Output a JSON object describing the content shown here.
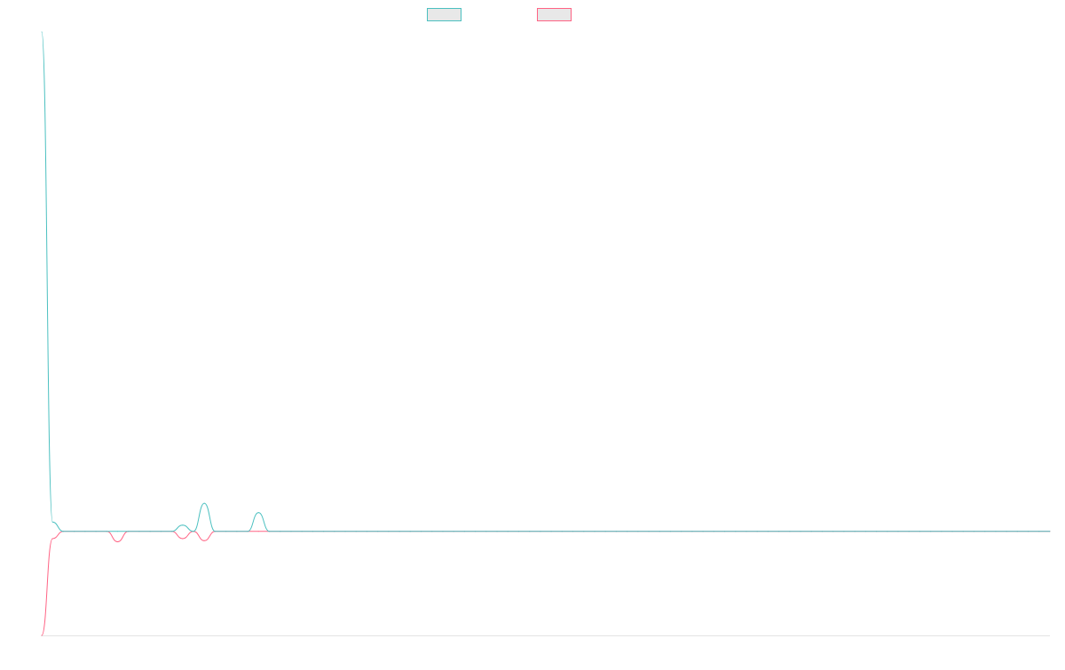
{
  "chart_data": {
    "type": "line",
    "title": "",
    "xlabel": "",
    "ylabel": "",
    "legend": {
      "position": "top-center"
    },
    "grid": false,
    "x_count": 94,
    "ylim": [
      -100,
      480
    ],
    "series": [
      {
        "color": "#4bc0c0",
        "fill": "#e8e8e8",
        "values": [
          480,
          9,
          0,
          0,
          0,
          0,
          0,
          0,
          0,
          0,
          0,
          0,
          0,
          6,
          0,
          27,
          0,
          0,
          0,
          0,
          18,
          0,
          0,
          0,
          0,
          0,
          0,
          0,
          0,
          0,
          0,
          0,
          0,
          0,
          0,
          0,
          0,
          0,
          0,
          0,
          0,
          0,
          0,
          0,
          0,
          0,
          0,
          0,
          0,
          0,
          0,
          0,
          0,
          0,
          0,
          0,
          0,
          0,
          0,
          0,
          0,
          0,
          0,
          0,
          0,
          0,
          0,
          0,
          0,
          0,
          0,
          0,
          0,
          0,
          0,
          0,
          0,
          0,
          0,
          0,
          0,
          0,
          0,
          0,
          0,
          0,
          0,
          0,
          0,
          0,
          0,
          0,
          0,
          0
        ]
      },
      {
        "color": "#ff6384",
        "fill": "#e8e8e8",
        "values": [
          -100,
          -7,
          0,
          0,
          0,
          0,
          0,
          -10,
          0,
          0,
          0,
          0,
          0,
          -7,
          0,
          -9,
          0,
          0,
          0,
          0,
          0,
          0,
          0,
          0,
          0,
          0,
          0,
          0,
          0,
          0,
          0,
          0,
          0,
          0,
          0,
          0,
          0,
          0,
          0,
          0,
          0,
          0,
          0,
          0,
          0,
          0,
          0,
          0,
          0,
          0,
          0,
          0,
          0,
          0,
          0,
          0,
          0,
          0,
          0,
          0,
          0,
          0,
          0,
          0,
          0,
          0,
          0,
          0,
          0,
          0,
          0,
          0,
          0,
          0,
          0,
          0,
          0,
          0,
          0,
          0,
          0,
          0,
          0,
          0,
          0,
          0,
          0,
          0,
          0,
          0,
          0,
          0,
          0,
          0
        ]
      }
    ]
  }
}
